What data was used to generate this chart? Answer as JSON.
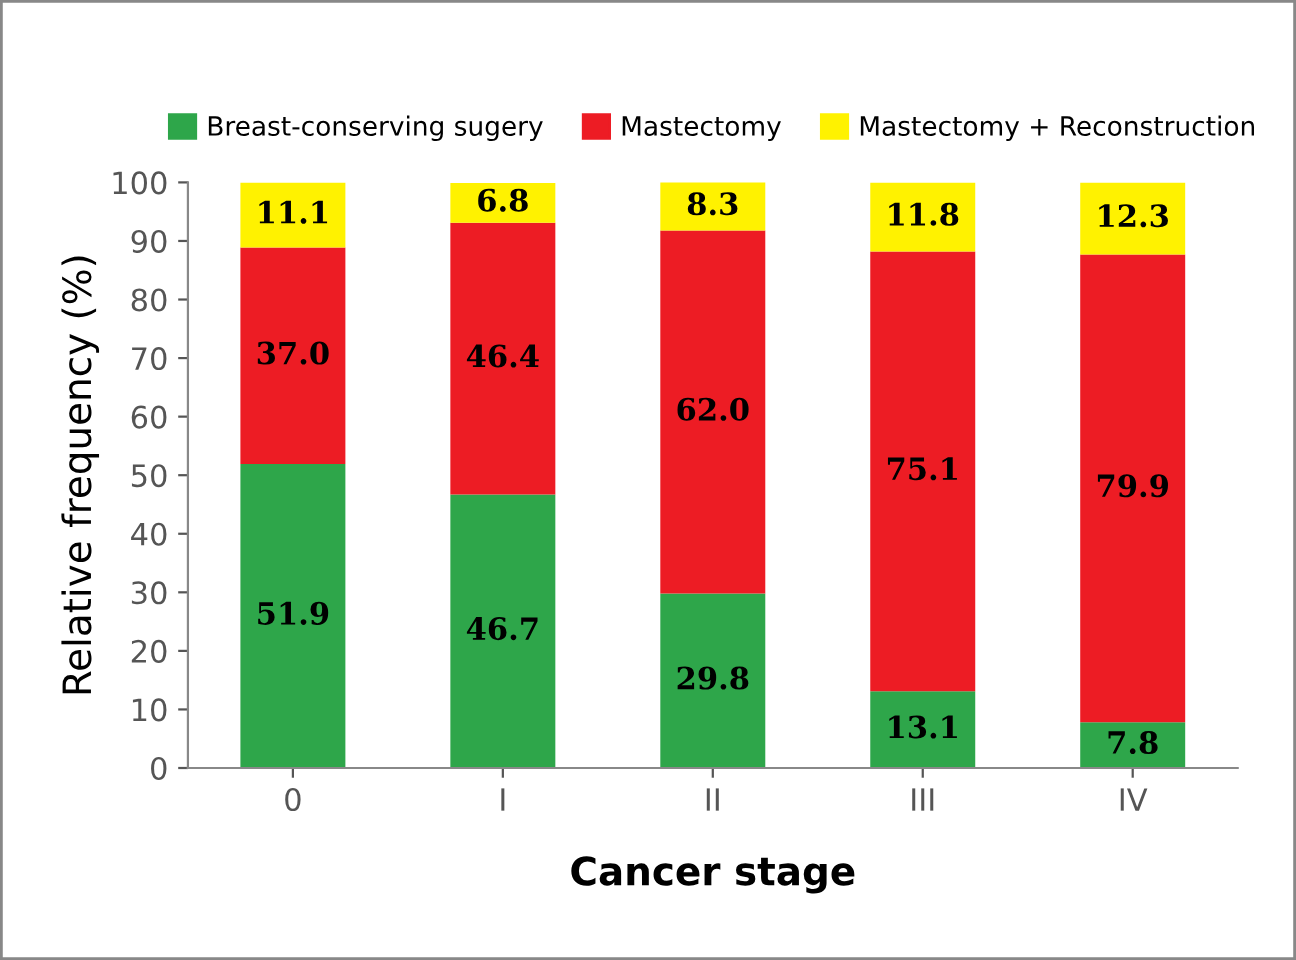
{
  "chart_data": {
    "type": "bar",
    "stacked": true,
    "xlabel": "Cancer stage",
    "ylabel": "Relative frequency (%)",
    "categories": [
      "0",
      "I",
      "II",
      "III",
      "IV"
    ],
    "series": [
      {
        "name": "Breast-conserving sugery",
        "color": "#2ea64a",
        "values": [
          51.9,
          46.7,
          29.8,
          13.1,
          7.8
        ],
        "value_labels": [
          "51.9",
          "46.7",
          "29.8",
          "13.1",
          "7.8"
        ]
      },
      {
        "name": "Mastectomy",
        "color": "#ed1c24",
        "values": [
          37.0,
          46.4,
          62.0,
          75.1,
          79.9
        ],
        "value_labels": [
          "37.0",
          "46.4",
          "62.0",
          "75.1",
          "79.9"
        ]
      },
      {
        "name": "Mastectomy + Reconstruction",
        "color": "#fff200",
        "values": [
          11.1,
          6.8,
          8.3,
          11.8,
          12.3
        ],
        "value_labels": [
          "11.1",
          "6.8",
          "8.3",
          "11.8",
          "12.3"
        ]
      }
    ],
    "ylim": [
      0,
      100
    ],
    "yticks": [
      0,
      10,
      20,
      30,
      40,
      50,
      60,
      70,
      80,
      90,
      100
    ],
    "legend": "top",
    "grid": false
  }
}
